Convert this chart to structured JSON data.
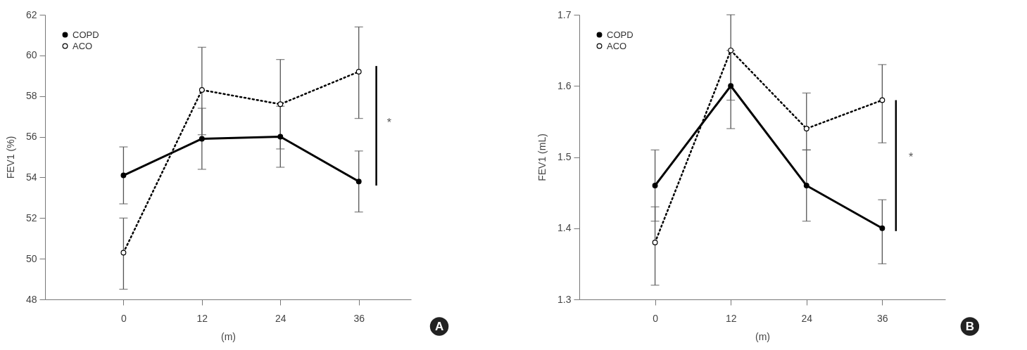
{
  "chart_data": [
    {
      "type": "line",
      "xlabel": "(m)",
      "ylabel": "FEV1 (%)",
      "x": [
        0,
        12,
        24,
        36
      ],
      "xlim": [
        -12,
        44
      ],
      "xticks": [
        0,
        12,
        24,
        36
      ],
      "ylim": [
        48,
        62
      ],
      "yticks": [
        48,
        50,
        52,
        54,
        56,
        58,
        60,
        62
      ],
      "legend": "top left",
      "marker": "circle",
      "grid": false,
      "annotations": [
        "*",
        "A"
      ],
      "series": [
        {
          "name": "COPD",
          "color": "#000000",
          "line_style": "solid",
          "values": [
            54.1,
            55.9,
            56.0,
            53.8
          ],
          "errors": [
            [
              52.7,
              55.5
            ],
            [
              54.4,
              57.4
            ],
            [
              54.5,
              57.5
            ],
            [
              52.3,
              55.3
            ]
          ]
        },
        {
          "name": "ACO",
          "color": "#000000",
          "line_style": "dotted",
          "values": [
            50.3,
            58.3,
            57.6,
            59.2
          ],
          "errors": [
            [
              48.5,
              52.0
            ],
            [
              56.1,
              60.4
            ],
            [
              55.4,
              59.8
            ],
            [
              56.9,
              61.4
            ]
          ]
        }
      ]
    },
    {
      "type": "line",
      "xlabel": "(m)",
      "ylabel": "FEV1 (mL)",
      "x": [
        0,
        12,
        24,
        36
      ],
      "xlim": [
        -12,
        46
      ],
      "xticks": [
        0,
        12,
        24,
        36
      ],
      "ylim": [
        1.3,
        1.7
      ],
      "yticks": [
        1.3,
        1.4,
        1.5,
        1.6,
        1.7
      ],
      "legend": "top left",
      "marker": "circle",
      "grid": false,
      "annotations": [
        "*",
        "B"
      ],
      "series": [
        {
          "name": "COPD",
          "color": "#000000",
          "line_style": "solid",
          "values": [
            1.46,
            1.6,
            1.46,
            1.4
          ],
          "errors": [
            [
              1.41,
              1.51
            ],
            [
              1.54,
              1.65
            ],
            [
              1.41,
              1.51
            ],
            [
              1.35,
              1.44
            ]
          ]
        },
        {
          "name": "ACO",
          "color": "#000000",
          "line_style": "dotted",
          "values": [
            1.38,
            1.65,
            1.54,
            1.58
          ],
          "errors": [
            [
              1.32,
              1.43
            ],
            [
              1.58,
              1.7
            ],
            [
              1.51,
              1.59
            ],
            [
              1.52,
              1.63
            ]
          ]
        }
      ]
    }
  ]
}
